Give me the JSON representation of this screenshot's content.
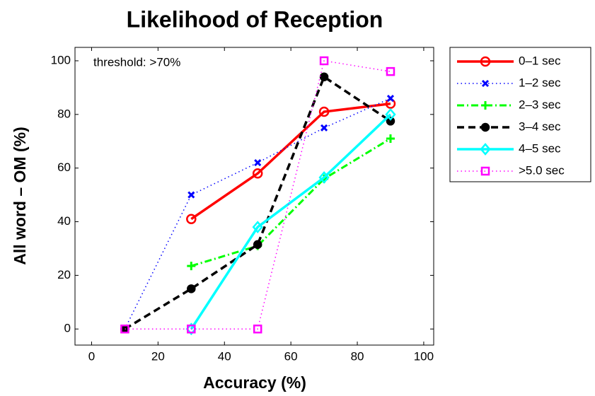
{
  "chart_data": {
    "type": "line",
    "title": "Likelihood of Reception",
    "xlabel": "Accuracy (%)",
    "ylabel": "All word – OM (%)",
    "annotation": "threshold: >70%",
    "x": [
      10,
      30,
      50,
      70,
      90
    ],
    "xlim": [
      -5,
      103
    ],
    "xticks": [
      0,
      20,
      40,
      60,
      80,
      100
    ],
    "ylim": [
      -6,
      105
    ],
    "yticks": [
      0,
      20,
      40,
      60,
      80,
      100
    ],
    "legend": "outside-top-right",
    "series": [
      {
        "name": "0–1 sec",
        "color": "#ff0000",
        "linestyle": "solid",
        "marker": "circle",
        "values": [
          null,
          41,
          58,
          81,
          84
        ]
      },
      {
        "name": "1–2 sec",
        "color": "#0000ff",
        "linestyle": "dotted",
        "marker": "x",
        "values": [
          0,
          50,
          62,
          75,
          86
        ]
      },
      {
        "name": "2–3 sec",
        "color": "#00ff00",
        "linestyle": "dashdot",
        "marker": "plus",
        "values": [
          null,
          23.5,
          31,
          56,
          71
        ]
      },
      {
        "name": "3–4 sec",
        "color": "#000000",
        "linestyle": "dashed",
        "marker": "dot",
        "values": [
          0,
          15,
          31.5,
          94,
          77.5
        ]
      },
      {
        "name": "4–5 sec",
        "color": "#00ffff",
        "linestyle": "solid",
        "marker": "diamond",
        "values": [
          null,
          0,
          38,
          56.5,
          80
        ]
      },
      {
        "name": ">5.0 sec",
        "color": "#ff00ff",
        "linestyle": "dotted",
        "marker": "square",
        "values": [
          0,
          0,
          0,
          100,
          96
        ]
      }
    ]
  }
}
